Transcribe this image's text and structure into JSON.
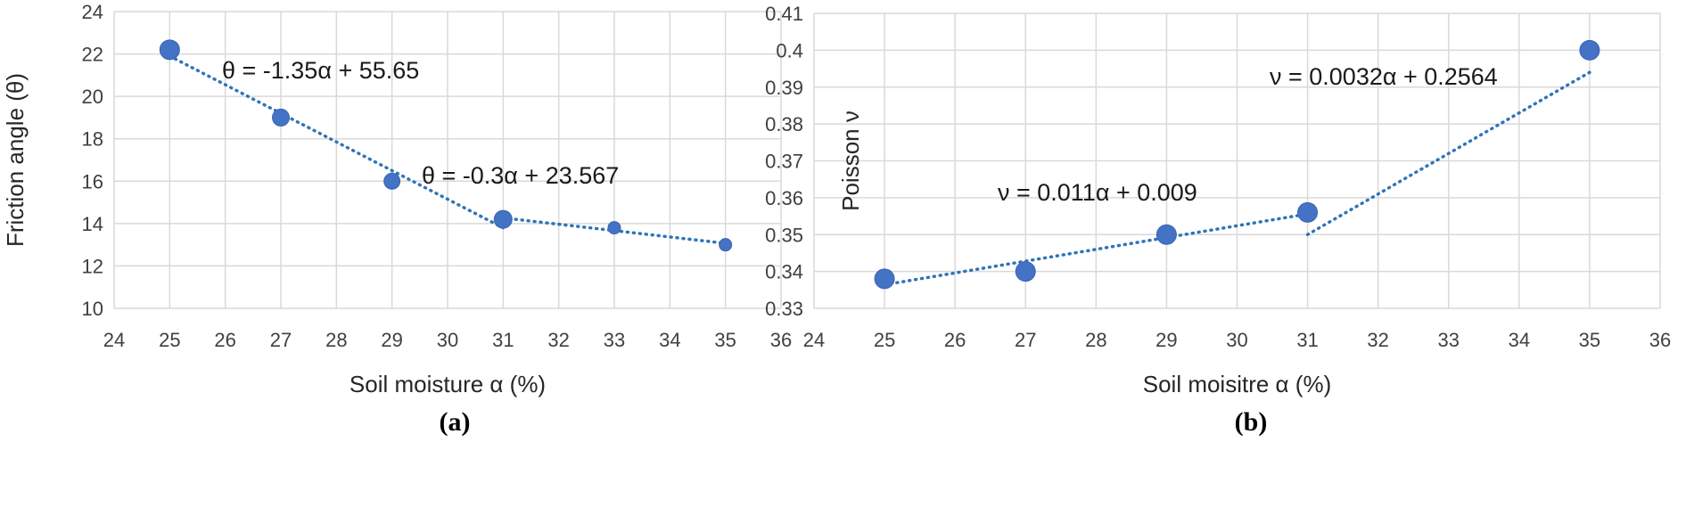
{
  "chart_data": [
    {
      "type": "scatter",
      "panel_label": "(a)",
      "xlabel": "Soil moisture α (%)",
      "ylabel": "Friction angle (θ)",
      "xlim": [
        24,
        36
      ],
      "ylim": [
        10,
        24
      ],
      "xticks": [
        "24",
        "25",
        "26",
        "27",
        "28",
        "29",
        "30",
        "31",
        "32",
        "33",
        "34",
        "35",
        "36"
      ],
      "yticks": [
        "10",
        "12",
        "14",
        "16",
        "18",
        "20",
        "22",
        "24"
      ],
      "grid": true,
      "marker_color": "#4472C4",
      "trend_color": "#2E75B6",
      "points": [
        {
          "x": 25,
          "y": 22.2
        },
        {
          "x": 27,
          "y": 19.0
        },
        {
          "x": 29,
          "y": 16.0
        },
        {
          "x": 31,
          "y": 14.2
        },
        {
          "x": 33,
          "y": 13.8
        },
        {
          "x": 35,
          "y": 13.0
        }
      ],
      "trendlines": [
        {
          "equation": "θ = -1.35α + 55.65",
          "slope": -1.35,
          "intercept": 55.65,
          "x_range": [
            25,
            31
          ]
        },
        {
          "equation": "θ = -0.3α + 23.567",
          "slope": -0.3,
          "intercept": 23.567,
          "x_range": [
            31,
            35
          ]
        }
      ]
    },
    {
      "type": "scatter",
      "panel_label": "(b)",
      "xlabel": "Soil moisitre α (%)",
      "ylabel": "Poisson ν",
      "xlim": [
        24,
        36
      ],
      "ylim": [
        0.33,
        0.41
      ],
      "xticks": [
        "24",
        "25",
        "26",
        "27",
        "28",
        "29",
        "30",
        "31",
        "32",
        "33",
        "34",
        "35",
        "36"
      ],
      "yticks": [
        "0.33",
        "0.34",
        "0.35",
        "0.36",
        "0.37",
        "0.38",
        "0.39",
        "0.4",
        "0.41"
      ],
      "grid": true,
      "marker_color": "#4472C4",
      "trend_color": "#2E75B6",
      "points": [
        {
          "x": 25,
          "y": 0.338
        },
        {
          "x": 27,
          "y": 0.34
        },
        {
          "x": 29,
          "y": 0.35
        },
        {
          "x": 31,
          "y": 0.356
        },
        {
          "x": 35,
          "y": 0.4
        }
      ],
      "trendlines": [
        {
          "equation": "ν = 0.0032α + 0.2564",
          "slope": 0.0032,
          "intercept": 0.2564,
          "x_range": [
            25,
            31
          ]
        },
        {
          "equation": "ν = 0.011α + 0.009",
          "slope": 0.011,
          "intercept": 0.009,
          "x_range": [
            31,
            35
          ]
        }
      ]
    }
  ]
}
